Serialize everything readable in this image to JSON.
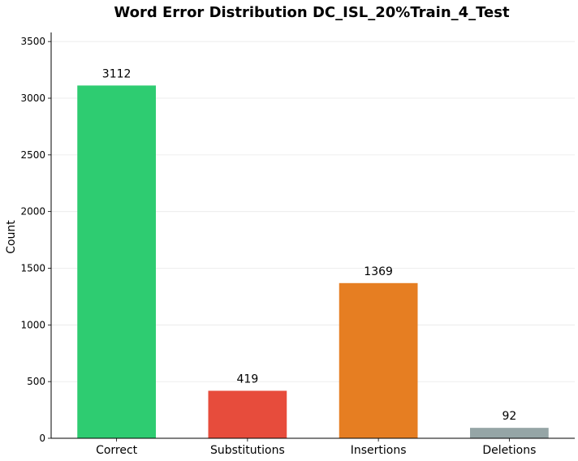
{
  "chart_data": {
    "type": "bar",
    "title": "Word Error Distribution DC_ISL_20%Train_4_Test",
    "xlabel": "",
    "ylabel": "Count",
    "categories": [
      "Correct",
      "Substitutions",
      "Insertions",
      "Deletions"
    ],
    "values": [
      3112,
      419,
      1369,
      92
    ],
    "data_labels": [
      "3112",
      "419",
      "1369",
      "92"
    ],
    "colors": [
      "#2ecc71",
      "#e74c3c",
      "#e67e22",
      "#95a5a6"
    ],
    "ylim": [
      0,
      3580
    ],
    "yticks": [
      0,
      500,
      1000,
      1500,
      2000,
      2500,
      3000,
      3500
    ],
    "ytick_labels": [
      "0",
      "500",
      "1000",
      "1500",
      "2000",
      "2500",
      "3000",
      "3500"
    ],
    "grid": true,
    "grid_axis": "y",
    "legend": false
  }
}
